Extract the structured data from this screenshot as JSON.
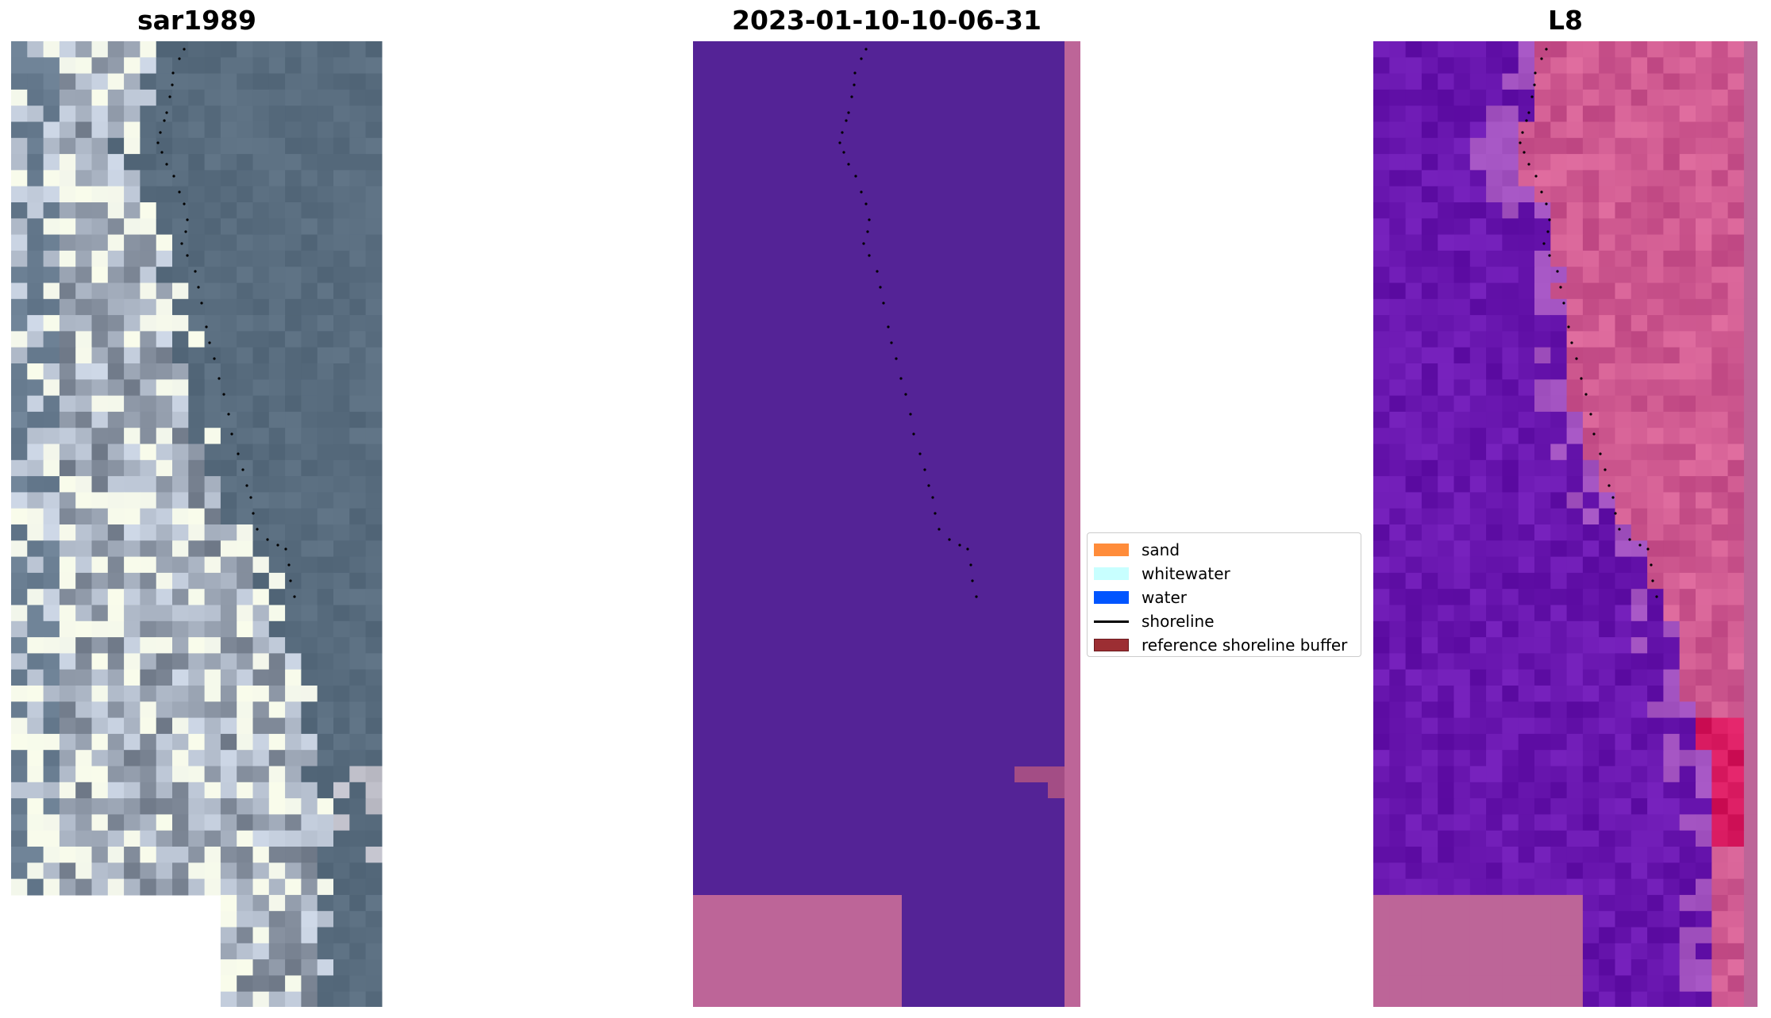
{
  "panels": [
    {
      "id": "rgb",
      "title": "sar1989"
    },
    {
      "id": "classified",
      "title": "2023-01-10-10-06-31"
    },
    {
      "id": "index",
      "title": "L8"
    }
  ],
  "legend": {
    "items": [
      {
        "label": "sand",
        "color": "#ff8c3a",
        "kind": "patch"
      },
      {
        "label": "whitewater",
        "color": "#c8ffff",
        "kind": "patch"
      },
      {
        "label": "water",
        "color": "#0055ff",
        "kind": "patch"
      },
      {
        "label": "shoreline",
        "color": "#000000",
        "kind": "line"
      },
      {
        "label": "reference shoreline buffer",
        "color": "#9c2e33",
        "kind": "patch"
      }
    ]
  },
  "colors": {
    "classified_water": "#542396",
    "nodata_pink": "#bd6598",
    "rgb_water": "#55687d",
    "rgb_land_light": "#e6ecf2"
  }
}
